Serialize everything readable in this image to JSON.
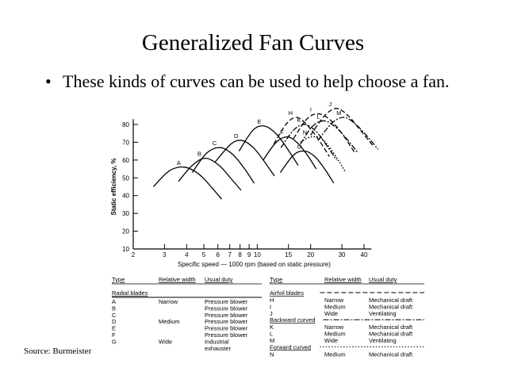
{
  "slide": {
    "title": "Generalized Fan Curves",
    "bullet_marker": "•",
    "bullet_text": "These kinds of curves can be used to help choose a fan.",
    "source": "Source: Burmeister"
  },
  "chart_data": {
    "type": "line",
    "title": "",
    "xlabel": "Specific speed — 1000 rpm (based on static pressure)",
    "ylabel": "Static efficiency, %",
    "x_scale": "log",
    "xlim": [
      2,
      50
    ],
    "ylim": [
      10,
      85
    ],
    "x_ticks": [
      2,
      3,
      4,
      5,
      6,
      7,
      8,
      9,
      10,
      15,
      20,
      30,
      40
    ],
    "x_tick_labels": [
      "2",
      "3",
      "4",
      "5",
      "6",
      "7",
      "8",
      "9",
      "10",
      "15",
      "20",
      "30",
      "40"
    ],
    "y_ticks": [
      10,
      20,
      30,
      40,
      50,
      60,
      70,
      80
    ],
    "y_tick_labels": [
      "10",
      "20",
      "30",
      "40",
      "50",
      "60",
      "70",
      "80"
    ],
    "grid": false,
    "series": [
      {
        "name": "A",
        "style": "solid",
        "points": [
          [
            2.6,
            45
          ],
          [
            3.2,
            54
          ],
          [
            3.9,
            56
          ],
          [
            4.7,
            52
          ],
          [
            5.6,
            44
          ],
          [
            6.3,
            38
          ]
        ]
      },
      {
        "name": "B",
        "style": "solid",
        "points": [
          [
            3.6,
            48
          ],
          [
            4.3,
            57
          ],
          [
            5.1,
            61
          ],
          [
            6.1,
            57
          ],
          [
            7.2,
            49
          ],
          [
            8.1,
            43
          ]
        ]
      },
      {
        "name": "C",
        "style": "solid",
        "points": [
          [
            4.3,
            53
          ],
          [
            5.2,
            64
          ],
          [
            6.2,
            67
          ],
          [
            7.3,
            63
          ],
          [
            8.5,
            55
          ],
          [
            9.6,
            47
          ]
        ]
      },
      {
        "name": "D",
        "style": "solid",
        "points": [
          [
            5.8,
            59
          ],
          [
            7.1,
            69
          ],
          [
            8.2,
            71
          ],
          [
            9.5,
            67
          ],
          [
            11.0,
            59
          ],
          [
            12.5,
            51
          ]
        ]
      },
      {
        "name": "E",
        "style": "solid",
        "points": [
          [
            7.9,
            65
          ],
          [
            9.5,
            77
          ],
          [
            11.1,
            79
          ],
          [
            13.0,
            74
          ],
          [
            15.1,
            65
          ],
          [
            17.0,
            57
          ]
        ]
      },
      {
        "name": "F",
        "style": "solid",
        "points": [
          [
            10.8,
            60
          ],
          [
            12.8,
            70
          ],
          [
            14.9,
            73
          ],
          [
            17.1,
            69
          ],
          [
            19.4,
            62
          ],
          [
            21.5,
            55
          ]
        ]
      },
      {
        "name": "G",
        "style": "solid",
        "points": [
          [
            13.5,
            53
          ],
          [
            16.1,
            63
          ],
          [
            18.6,
            65
          ],
          [
            21.1,
            62
          ],
          [
            24.0,
            55
          ],
          [
            27.0,
            47
          ]
        ]
      },
      {
        "name": "H",
        "style": "dashed",
        "points": [
          [
            12.4,
            69
          ],
          [
            14.5,
            80
          ],
          [
            16.6,
            84
          ],
          [
            19.0,
            80
          ],
          [
            22.0,
            72
          ],
          [
            25.5,
            62
          ]
        ]
      },
      {
        "name": "I",
        "style": "dashed",
        "points": [
          [
            16.0,
            72
          ],
          [
            19.0,
            83
          ],
          [
            22.0,
            86
          ],
          [
            25.5,
            83
          ],
          [
            30.0,
            75
          ],
          [
            35.5,
            64
          ]
        ]
      },
      {
        "name": "J",
        "style": "dashed",
        "points": [
          [
            20.0,
            74
          ],
          [
            24.0,
            85
          ],
          [
            28.0,
            89
          ],
          [
            32.5,
            85
          ],
          [
            38.0,
            77
          ],
          [
            45.0,
            68
          ]
        ]
      },
      {
        "name": "K",
        "style": "dash-dot",
        "points": [
          [
            13.6,
            67
          ],
          [
            16.1,
            77
          ],
          [
            18.6,
            80
          ],
          [
            21.5,
            76
          ],
          [
            24.7,
            68
          ],
          [
            28.0,
            60
          ]
        ]
      },
      {
        "name": "L",
        "style": "dash-dot",
        "points": [
          [
            17.5,
            69
          ],
          [
            20.5,
            79
          ],
          [
            24.0,
            82
          ],
          [
            28.0,
            78
          ],
          [
            32.5,
            71
          ],
          [
            37.0,
            64
          ]
        ]
      },
      {
        "name": "M",
        "style": "dash-dot",
        "points": [
          [
            22.0,
            71
          ],
          [
            26.5,
            81
          ],
          [
            31.0,
            84
          ],
          [
            36.0,
            80
          ],
          [
            42.0,
            73
          ],
          [
            48.0,
            66
          ]
        ]
      },
      {
        "name": "N",
        "style": "dotted",
        "points": [
          [
            17.5,
            70
          ],
          [
            20.0,
            73
          ],
          [
            23.0,
            72
          ],
          [
            26.0,
            66
          ],
          [
            29.0,
            59
          ],
          [
            31.5,
            53
          ]
        ]
      }
    ],
    "legend": {
      "headers": {
        "type": "Type",
        "width": "Relative width",
        "duty": "Usual duty"
      },
      "left": {
        "group": "Radial blades",
        "rows": [
          {
            "type": "A",
            "width": "Narrow",
            "duty": "Pressure blower"
          },
          {
            "type": "B",
            "width": "",
            "duty": "Pressure blower"
          },
          {
            "type": "C",
            "width": "",
            "duty": "Pressure blower"
          },
          {
            "type": "D",
            "width": "Medium",
            "duty": "Pressure blower"
          },
          {
            "type": "E",
            "width": "",
            "duty": "Pressure blower"
          },
          {
            "type": "F",
            "width": "",
            "duty": "Pressure blower"
          },
          {
            "type": "G",
            "width": "Wide",
            "duty": "Industrial"
          },
          {
            "type": "",
            "width": "",
            "duty": "exhauster"
          }
        ]
      },
      "right": {
        "groups": [
          {
            "name": "Airfoil blades",
            "rows": [
              {
                "type": "H",
                "width": "Narrow",
                "duty": "Mechanical draft"
              },
              {
                "type": "I",
                "width": "Medium",
                "duty": "Mechanical draft"
              },
              {
                "type": "J",
                "width": "Wide",
                "duty": "Ventilating"
              }
            ]
          },
          {
            "name": "Backward curved",
            "rows": [
              {
                "type": "K",
                "width": "Narrow",
                "duty": "Mechanical draft"
              },
              {
                "type": "L",
                "width": "Medium",
                "duty": "Mechanical draft"
              },
              {
                "type": "M",
                "width": "Wide",
                "duty": "Ventilating"
              }
            ]
          },
          {
            "name": "Forward curved",
            "rows": [
              {
                "type": "N",
                "width": "Medium",
                "duty": "Mechanical draft"
              }
            ]
          }
        ]
      }
    }
  }
}
